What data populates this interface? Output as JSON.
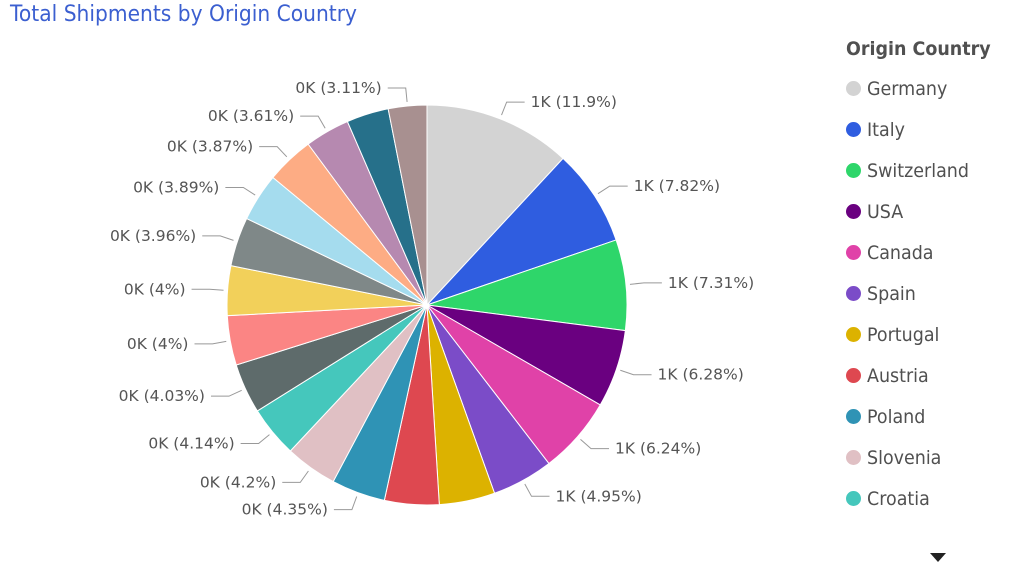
{
  "title": "Total Shipments by Origin Country",
  "legend": {
    "title": "Origin Country",
    "items": [
      {
        "label": "Germany",
        "color": "#d3d3d3"
      },
      {
        "label": "Italy",
        "color": "#2f5de0"
      },
      {
        "label": "Switzerland",
        "color": "#2ed66a"
      },
      {
        "label": "USA",
        "color": "#6a0080"
      },
      {
        "label": "Canada",
        "color": "#e042a8"
      },
      {
        "label": "Spain",
        "color": "#7b4cc8"
      },
      {
        "label": "Portugal",
        "color": "#dcb200"
      },
      {
        "label": "Austria",
        "color": "#de4850"
      },
      {
        "label": "Poland",
        "color": "#2f93b5"
      },
      {
        "label": "Slovenia",
        "color": "#e0c0c4"
      },
      {
        "label": "Croatia",
        "color": "#45c7bc"
      }
    ],
    "scroll_icon": "triangle-down-icon"
  },
  "chart_data": {
    "type": "pie",
    "title": "Total Shipments by Origin Country",
    "legend_title": "Origin Country",
    "legend_placement": "right",
    "slices": [
      {
        "name": "Germany",
        "percent": 11.9,
        "label": "1K (11.9%)",
        "color": "#d3d3d3"
      },
      {
        "name": "Italy",
        "percent": 7.82,
        "label": "1K (7.82%)",
        "color": "#2f5de0"
      },
      {
        "name": "Switzerland",
        "percent": 7.31,
        "label": "1K (7.31%)",
        "color": "#2ed66a"
      },
      {
        "name": "USA",
        "percent": 6.28,
        "label": "1K (6.28%)",
        "color": "#6a0080"
      },
      {
        "name": "Canada",
        "percent": 6.24,
        "label": "1K (6.24%)",
        "color": "#e042a8"
      },
      {
        "name": "Spain",
        "percent": 4.95,
        "label": "1K (4.95%)",
        "color": "#7b4cc8"
      },
      {
        "name": "Portugal",
        "percent": 4.5,
        "label": "",
        "color": "#dcb200"
      },
      {
        "name": "Austria",
        "percent": 4.4,
        "label": "",
        "color": "#de4850"
      },
      {
        "name": "Poland",
        "percent": 4.35,
        "label": "0K (4.35%)",
        "color": "#2f93b5"
      },
      {
        "name": "Slovenia",
        "percent": 4.2,
        "label": "0K (4.2%)",
        "color": "#e0c0c4"
      },
      {
        "name": "Croatia",
        "percent": 4.14,
        "label": "0K (4.14%)",
        "color": "#45c7bc"
      },
      {
        "name": "",
        "percent": 4.03,
        "label": "0K (4.03%)",
        "color": "#5e6b6b"
      },
      {
        "name": "",
        "percent": 4.0,
        "label": "0K (4%)",
        "color": "#fb8584"
      },
      {
        "name": "",
        "percent": 4.0,
        "label": "0K (4%)",
        "color": "#f2d05a"
      },
      {
        "name": "",
        "percent": 3.96,
        "label": "0K (3.96%)",
        "color": "#7f8888"
      },
      {
        "name": "",
        "percent": 3.89,
        "label": "0K (3.89%)",
        "color": "#a5dcee"
      },
      {
        "name": "",
        "percent": 3.87,
        "label": "0K (3.87%)",
        "color": "#fdac84"
      },
      {
        "name": "",
        "percent": 3.61,
        "label": "0K (3.61%)",
        "color": "#b689b0"
      },
      {
        "name": "",
        "percent": 3.4,
        "label": "",
        "color": "#26708a"
      },
      {
        "name": "",
        "percent": 3.11,
        "label": "0K (3.11%)",
        "color": "#a89090"
      }
    ]
  }
}
